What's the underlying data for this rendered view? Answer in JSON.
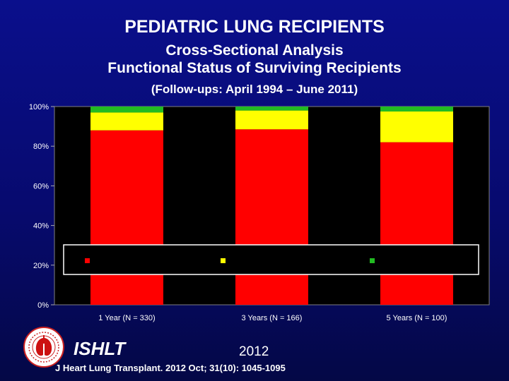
{
  "header": {
    "title": "PEDIATRIC LUNG RECIPIENTS",
    "subtitle_1": "Cross-Sectional Analysis",
    "subtitle_2": "Functional Status of Surviving Recipients",
    "subtitle_3": "(Follow-ups: April 1994 – June 2011)"
  },
  "chart_data": {
    "type": "bar",
    "stacked": true,
    "percent": true,
    "categories": [
      "1 Year (N = 330)",
      "3 Years (N = 166)",
      "5 Years (N = 100)"
    ],
    "series": [
      {
        "name": "",
        "color": "#ff0000",
        "values": [
          88,
          88.5,
          82
        ]
      },
      {
        "name": "",
        "color": "#ffff00",
        "values": [
          9,
          9.5,
          15.5
        ]
      },
      {
        "name": "",
        "color": "#22bb22",
        "values": [
          3,
          2,
          2.5
        ]
      }
    ],
    "yticks": [
      "0%",
      "20%",
      "40%",
      "60%",
      "80%",
      "100%"
    ],
    "ylim": [
      0,
      100
    ],
    "legend_position": "center"
  },
  "footer": {
    "brand": "ISHLT",
    "year": "2012",
    "citation": "J Heart Lung Transplant. 2012 Oct; 31(10): 1045-1095"
  },
  "icons": {
    "logo": "ishlt-logo-icon"
  },
  "colors": {
    "background": "#0a0f8c",
    "plot_background": "#000000"
  }
}
